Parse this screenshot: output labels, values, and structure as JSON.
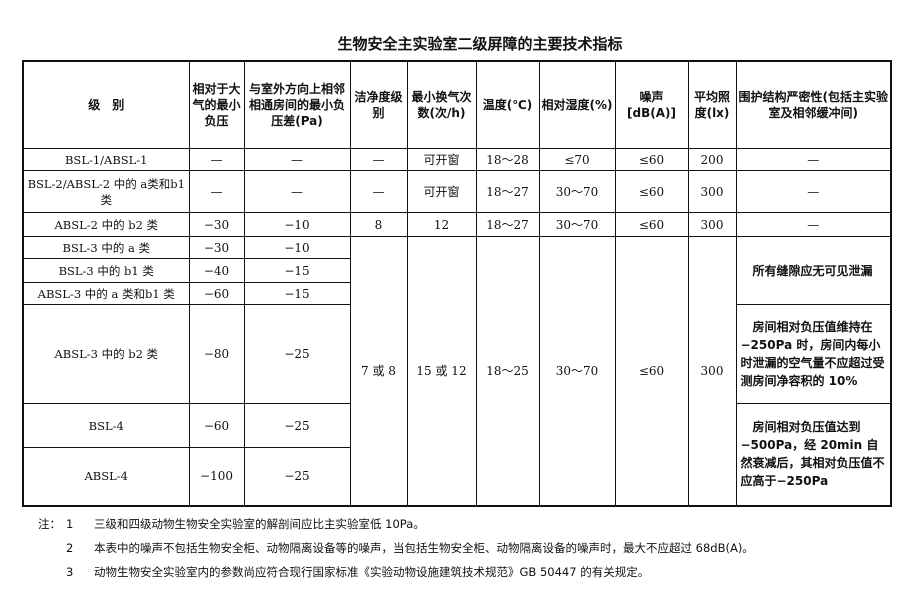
{
  "title": "生物安全主实验室二级屏障的主要技术指标",
  "headers": [
    "级　别",
    "相对于大气的最小负压",
    "与室外方向上相邻相通房间的最小负压差(Pa)",
    "洁净度级别",
    "最小换气次数(次/h)",
    "温度(℃)",
    "相对湿度(%)",
    "噪声[dB(A)]",
    "平均照度(lx)",
    "围护结构严密性(包括主实验室及相邻缓冲间)"
  ],
  "rows": [
    {
      "level": "BSL-1/ABSL-1",
      "p_atm": "—",
      "p_diff": "—",
      "clean": "—",
      "ach": "可开窗",
      "temp": "18～28",
      "rh": "≤70",
      "noise": "≤60",
      "lux": "200",
      "seal": "—"
    },
    {
      "level": "BSL-2/ABSL-2 中的 a类和b1类",
      "p_atm": "—",
      "p_diff": "—",
      "clean": "—",
      "ach": "可开窗",
      "temp": "18～27",
      "rh": "30～70",
      "noise": "≤60",
      "lux": "300",
      "seal": "—"
    },
    {
      "level": "ABSL-2 中的 b2 类",
      "p_atm": "−30",
      "p_diff": "−10",
      "clean": "8",
      "ach": "12",
      "temp": "18～27",
      "rh": "30～70",
      "noise": "≤60",
      "lux": "300",
      "seal": "—"
    },
    {
      "level": "BSL-3 中的 a 类",
      "p_atm": "−30",
      "p_diff": "−10"
    },
    {
      "level": "BSL-3 中的 b1 类",
      "p_atm": "−40",
      "p_diff": "−15"
    },
    {
      "level": "ABSL-3 中的 a 类和b1 类",
      "p_atm": "−60",
      "p_diff": "−15"
    },
    {
      "level": "ABSL-3 中的 b2 类",
      "p_atm": "−80",
      "p_diff": "−25"
    },
    {
      "level": "BSL-4",
      "p_atm": "−60",
      "p_diff": "−25"
    },
    {
      "level": "ABSL-4",
      "p_atm": "−100",
      "p_diff": "−25"
    }
  ],
  "merged": {
    "clean": "7 或 8",
    "ach": "15 或 12",
    "temp": "18～25",
    "rh": "30～70",
    "noise": "≤60",
    "lux": "300"
  },
  "seal_notes": [
    "　所有缝隙应无可见泄漏",
    "　房间相对负压值维持在−250Pa 时，房间内每小时泄漏的空气量不应超过受测房间净容积的 10%",
    "　房间相对负压值达到 −500Pa，经 20min 自然衰减后，其相对负压值不应高于−250Pa"
  ],
  "notes": {
    "prefix": "注：",
    "items": [
      {
        "n": "1",
        "text": "三级和四级动物生物安全实验室的解剖间应比主实验室低 10Pa。"
      },
      {
        "n": "2",
        "text": "本表中的噪声不包括生物安全柜、动物隔离设备等的噪声，当包括生物安全柜、动物隔离设备的噪声时，最大不应超过 68dB(A)。"
      },
      {
        "n": "3",
        "text": "动物生物安全实验室内的参数尚应符合现行国家标准《实验动物设施建筑技术规范》GB 50447 的有关规定。"
      }
    ]
  }
}
